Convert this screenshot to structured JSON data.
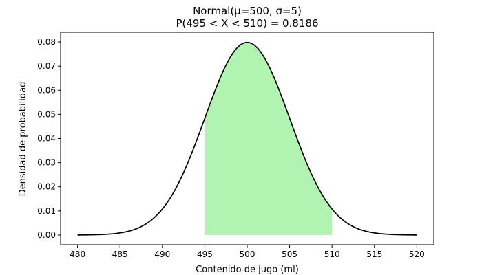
{
  "chart_data": {
    "type": "area",
    "title_line1": "Normal(μ=500, σ=5)",
    "title_line2": "P(495 < X < 510) = 0.8186",
    "xlabel": "Contenido de jugo (ml)",
    "ylabel": "Densidad de probabilidad",
    "mean": 500,
    "sd": 5,
    "x_range": [
      480,
      520
    ],
    "shaded_interval": [
      495,
      510
    ],
    "probability": 0.8186,
    "xlim": [
      478,
      522
    ],
    "ylim": [
      -0.004,
      0.084
    ],
    "xticks": [
      "480",
      "485",
      "490",
      "495",
      "500",
      "505",
      "510",
      "515",
      "520"
    ],
    "yticks": [
      "0.00",
      "0.01",
      "0.02",
      "0.03",
      "0.04",
      "0.05",
      "0.06",
      "0.07",
      "0.08"
    ],
    "grid": false,
    "curve_color": "#000000",
    "fill_color": "#90ee90"
  }
}
